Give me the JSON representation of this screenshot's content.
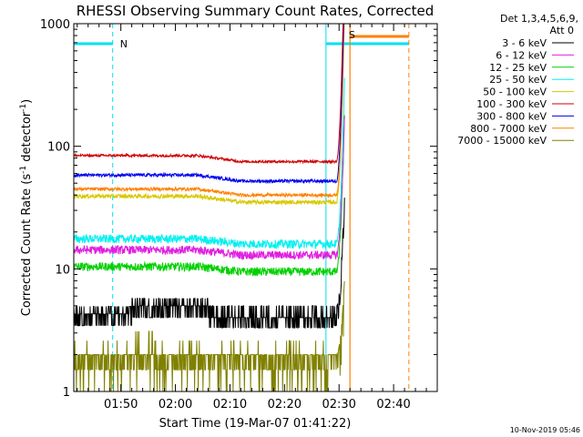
{
  "chart_data": {
    "type": "line",
    "title": "RHESSI Observing Summary Count Rates, Corrected",
    "xlabel": "Start Time (19-Mar-07 01:41:22)",
    "ylabel_main": "Corrected Count Rate (s",
    "ylabel_sup1": "-1",
    "ylabel_mid": " detector",
    "ylabel_sup2": "-1",
    "ylabel_end": ")",
    "yscale": "log",
    "ylim": [
      1,
      1000
    ],
    "y_ticks": [
      {
        "value": 1,
        "label": "1"
      },
      {
        "value": 10,
        "label": "10"
      },
      {
        "value": 100,
        "label": "100"
      },
      {
        "value": 1000,
        "label": "1000"
      }
    ],
    "xlim_min": [
      41.37,
      108
    ],
    "x_ticks": [
      {
        "value": 50,
        "label": "01:50"
      },
      {
        "value": 60,
        "label": "02:00"
      },
      {
        "value": 70,
        "label": "02:10"
      },
      {
        "value": 80,
        "label": "02:20"
      },
      {
        "value": 90,
        "label": "02:30"
      },
      {
        "value": 100,
        "label": "02:40"
      }
    ],
    "legend_title_1": "Det 1,3,4,5,6,9,",
    "legend_title_2": "Att 0",
    "series": [
      {
        "name": "3 - 6 keV",
        "color": "#000000",
        "base": 4.6,
        "hump": 0.12,
        "noise": 0.28,
        "flare": 9,
        "step": true
      },
      {
        "name": "6 - 12 keV",
        "color": "#e020e0",
        "base": 13,
        "hump": 0.1,
        "noise": 0.08,
        "flare": 14
      },
      {
        "name": "12 - 25 keV",
        "color": "#00d000",
        "base": 9.5,
        "hump": 0.1,
        "noise": 0.08,
        "flare": 18
      },
      {
        "name": "25 - 50 keV",
        "color": "#00f0f0",
        "base": 16,
        "hump": 0.1,
        "noise": 0.08,
        "flare": 22
      },
      {
        "name": "50 - 100 keV",
        "color": "#d8c800",
        "base": 35,
        "hump": 0.12,
        "noise": 0.04,
        "flare": 35
      },
      {
        "name": "100 - 300 keV",
        "color": "#d00000",
        "base": 75,
        "hump": 0.12,
        "noise": 0.025,
        "flare": 50
      },
      {
        "name": "300 - 800 keV",
        "color": "#0000ee",
        "base": 52,
        "hump": 0.12,
        "noise": 0.03,
        "flare": 40
      },
      {
        "name": "800 - 7000 keV",
        "color": "#ff8000",
        "base": 40,
        "hump": 0.12,
        "noise": 0.03,
        "flare": 38
      },
      {
        "name": "7000 - 15000 keV",
        "color": "#808000",
        "base": 1.6,
        "hump": 0,
        "noise": 0.5,
        "flare": 4,
        "step": true
      }
    ],
    "flare_start_min": 89.5,
    "flare_end_min": 91.0,
    "night": {
      "label": "N",
      "start_min": 41.37,
      "end_min": 48.5,
      "color": "#00e0f0"
    },
    "saa": {
      "label": "S",
      "start_min": 87.6,
      "end_min": 102.8,
      "color": "#00e0f0"
    },
    "flare_flag": {
      "start_min": 92.0,
      "end_min": 102.8,
      "color": "#ff8000"
    },
    "attenuator_line_min": 92.0,
    "grid": false,
    "legend_position": "right"
  },
  "footer": {
    "timestamp": "10-Nov-2019 05:46"
  }
}
